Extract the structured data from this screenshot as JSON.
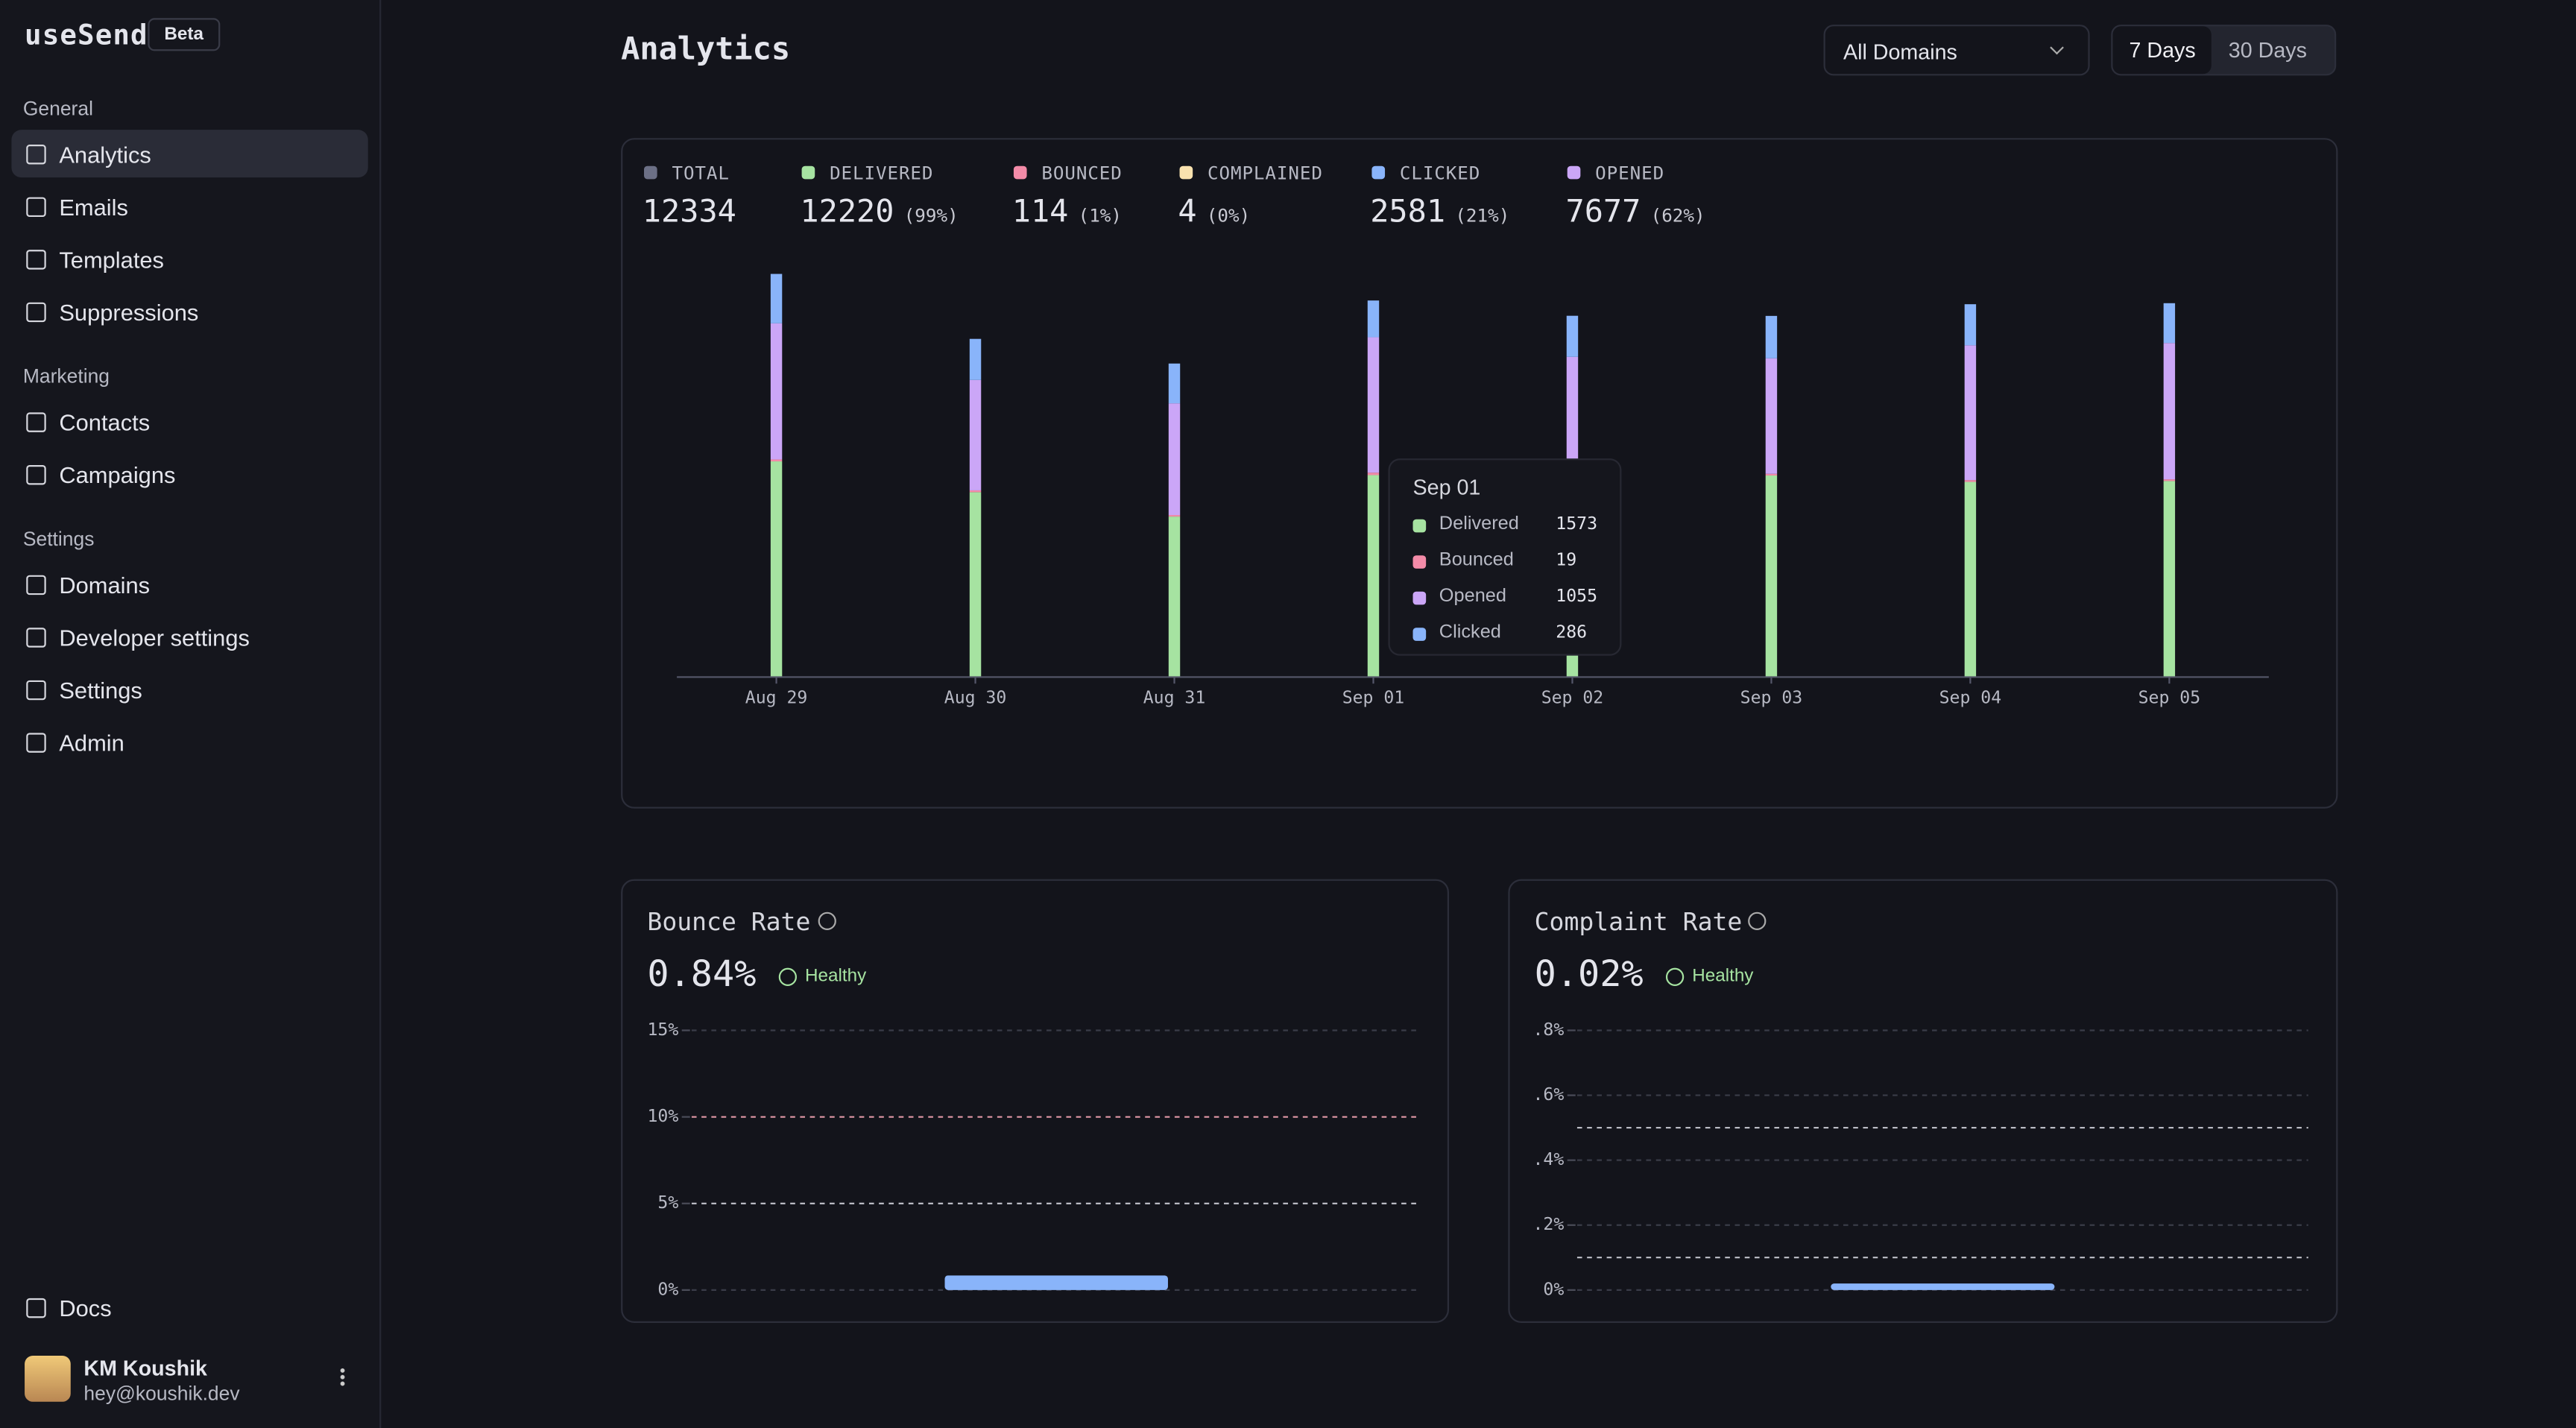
{
  "sidebar": {
    "brand": "useSend",
    "badge": "Beta",
    "sections": [
      {
        "title": "General",
        "items": [
          "Analytics",
          "Emails",
          "Templates",
          "Suppressions"
        ]
      },
      {
        "title": "Marketing",
        "items": [
          "Contacts",
          "Campaigns"
        ]
      },
      {
        "title": "Settings",
        "items": [
          "Domains",
          "Developer settings",
          "Settings",
          "Admin"
        ]
      }
    ],
    "docs": "Docs",
    "user": {
      "name": "KM Koushik",
      "email": "hey@koushik.dev"
    }
  },
  "header": {
    "title": "Analytics",
    "domain_select": "All Domains",
    "ranges": [
      "7 Days",
      "30 Days"
    ]
  },
  "summary": [
    {
      "label": "Total",
      "color": "#6c7086",
      "value": 12334
    },
    {
      "label": "Delivered",
      "color": "#a6e3a1",
      "value": 12220,
      "percent": "(99%)"
    },
    {
      "label": "Bounced",
      "color": "#f38ba8",
      "value": 114,
      "percent": "(1%)"
    },
    {
      "label": "Complained",
      "color": "#f9e2af",
      "value": 4,
      "percent": "(0%)"
    },
    {
      "label": "Clicked",
      "color": "#89b4fa",
      "value": 2581,
      "percent": "(21%)"
    },
    {
      "label": "Opened",
      "color": "#cba6f7",
      "value": 7677,
      "percent": "(62%)"
    }
  ],
  "bounce_card": {
    "title": "Bounce Rate",
    "value": "0.84%",
    "status": "Healthy"
  },
  "complaint_card": {
    "title": "Complaint Rate",
    "value": "0.02%",
    "status": "Healthy"
  },
  "chart_data": [
    {
      "type": "bar",
      "stacked": true,
      "categories": [
        "Aug 29",
        "Aug 30",
        "Aug 31",
        "Sep 01",
        "Sep 02",
        "Sep 03",
        "Sep 04",
        "Sep 05"
      ],
      "ylim": [
        0,
        3200
      ],
      "series": [
        {
          "name": "Delivered",
          "color": "#a6e3a1",
          "values": [
            1680,
            1440,
            1250,
            1573,
            1660,
            1570,
            1520,
            1527
          ]
        },
        {
          "name": "Bounced",
          "color": "#f38ba8",
          "values": [
            15,
            14,
            12,
            19,
            14,
            13,
            14,
            13
          ]
        },
        {
          "name": "Opened",
          "color": "#cba6f7",
          "values": [
            1060,
            860,
            870,
            1055,
            820,
            900,
            1050,
            1062
          ]
        },
        {
          "name": "Clicked",
          "color": "#89b4fa",
          "values": [
            385,
            320,
            310,
            286,
            320,
            330,
            320,
            310
          ]
        }
      ]
    },
    {
      "type": "bar",
      "categories": [
        null
      ],
      "values": [
        0.84
      ],
      "color": "#89b4fa",
      "ylim": [
        0,
        15
      ],
      "grid": true,
      "yticks": [
        {
          "value": 0,
          "label": "0%"
        },
        {
          "value": 5,
          "label": "5%"
        },
        {
          "value": 10,
          "label": "10%"
        },
        {
          "value": 15,
          "label": "15%"
        }
      ],
      "thresholds": [
        {
          "value": 5,
          "color": "#c8c9d2"
        },
        {
          "value": 10,
          "color": "#e89aa8"
        }
      ]
    },
    {
      "type": "bar",
      "categories": [
        null
      ],
      "values": [
        0.02
      ],
      "color": "#89b4fa",
      "ylim": [
        0,
        0.8
      ],
      "grid": true,
      "yticks": [
        {
          "value": 0,
          "label": "0%"
        },
        {
          "value": 0.2,
          "label": ".2%"
        },
        {
          "value": 0.4,
          "label": ".4%"
        },
        {
          "value": 0.6,
          "label": ".6%"
        },
        {
          "value": 0.8,
          "label": ".8%"
        }
      ],
      "thresholds": [
        {
          "value": 0.1,
          "color": "#c8c9d2"
        },
        {
          "value": 0.5,
          "color": "#c8c9d2"
        }
      ]
    }
  ]
}
